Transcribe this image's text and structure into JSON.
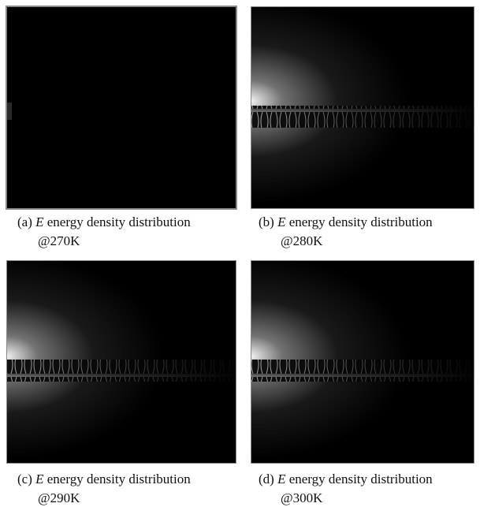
{
  "panels": [
    {
      "label": "(a)",
      "symbol": "E",
      "text": "energy density distribution",
      "temperature": "@270K"
    },
    {
      "label": "(b)",
      "symbol": "E",
      "text": "energy density distribution",
      "temperature": "@280K"
    },
    {
      "label": "(c)",
      "symbol": "E",
      "text": "energy density distribution",
      "temperature": "@290K"
    },
    {
      "label": "(d)",
      "symbol": "E",
      "text": "energy density distribution",
      "temperature": "@300K"
    }
  ]
}
